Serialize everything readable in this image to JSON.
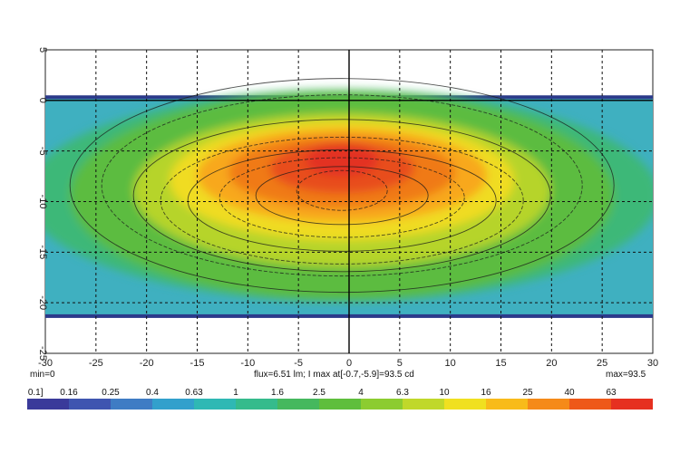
{
  "chart_data": {
    "type": "heatmap",
    "title": "",
    "xlabel": "",
    "ylabel": "",
    "xlim": [
      -30,
      30
    ],
    "ylim": [
      -25,
      5
    ],
    "x_ticks": [
      -30,
      -25,
      -20,
      -15,
      -10,
      -5,
      0,
      5,
      10,
      15,
      20,
      25,
      30
    ],
    "y_ticks": [
      5,
      0,
      -5,
      -10,
      -15,
      -20,
      -25
    ],
    "grid": true,
    "peak": {
      "x": -0.7,
      "y": -5.9,
      "value": 93.5
    },
    "beam_extent": {
      "x": [
        -30,
        30
      ],
      "y": [
        -21.5,
        0.5
      ]
    },
    "min_label": "min=0",
    "max_label": "max=93.5",
    "info_label": "flux=6.51 lm; I max at[-0.7,-5.9]=93.5 cd",
    "colorbar_labels": [
      "0.1]",
      "0.16",
      "0.25",
      "0.4",
      "0.63",
      "1",
      "1.6",
      "2.5",
      "4",
      "6.3",
      "10",
      "16",
      "25",
      "40",
      "63"
    ],
    "colorbar_colors": [
      "#3a3a9a",
      "#3f55b0",
      "#3f7cc4",
      "#32a0cc",
      "#2fb8b4",
      "#35bb8c",
      "#45b85e",
      "#5fbe3c",
      "#8ccc30",
      "#c0d82a",
      "#f0e020",
      "#f8bb1a",
      "#f58a18",
      "#ee5818",
      "#e63020"
    ]
  }
}
